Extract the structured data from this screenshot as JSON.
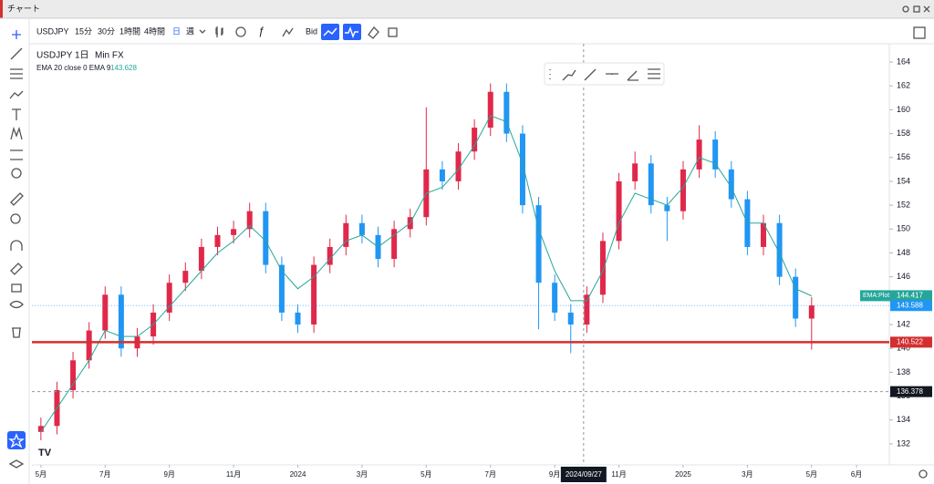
{
  "header": {
    "title": "チャート"
  },
  "toolbar": {
    "symbol": "USDJPY",
    "intervals": [
      "15分",
      "30分",
      "1時間",
      "4時間",
      "日",
      "週"
    ],
    "price_type": "Bid"
  },
  "legend": {
    "symbol": "USDJPY",
    "interval": "1日",
    "source": "Min FX",
    "indicator": "EMA 20 close 0 EMA 9",
    "indicator_value": "143.628"
  },
  "chart_data": {
    "type": "candlestick",
    "up_color": "#e0284a",
    "down_color": "#2196f3",
    "ema_color": "#26a69a",
    "xlim": [
      -0.28,
      26.42
    ],
    "ylim": [
      130.24,
      165.53
    ],
    "yticks": [
      132,
      134,
      136,
      138,
      140,
      142,
      144,
      146,
      148,
      150,
      152,
      154,
      156,
      158,
      160,
      162,
      164
    ],
    "xticks": [
      {
        "value": 0,
        "label": "5月"
      },
      {
        "value": 2,
        "label": "7月"
      },
      {
        "value": 4,
        "label": "9月"
      },
      {
        "value": 6,
        "label": "11月"
      },
      {
        "value": 8,
        "label": "2024"
      },
      {
        "value": 10,
        "label": "3月"
      },
      {
        "value": 12,
        "label": "5月"
      },
      {
        "value": 14,
        "label": "7月"
      },
      {
        "value": 16,
        "label": "9月"
      },
      {
        "value": 18,
        "label": "11月"
      },
      {
        "value": 20,
        "label": "2025"
      },
      {
        "value": 22,
        "label": "3月"
      },
      {
        "value": 24,
        "label": "5月"
      },
      {
        "value": 25.4,
        "label": "6月"
      }
    ],
    "x": [
      0,
      0.5,
      1,
      1.5,
      2,
      2.5,
      3,
      3.5,
      4,
      4.5,
      5,
      5.5,
      6,
      6.5,
      7,
      7.5,
      8,
      8.5,
      9,
      9.5,
      10,
      10.5,
      11,
      11.5,
      12,
      12.5,
      13,
      13.5,
      14,
      14.5,
      15,
      15.5,
      16,
      16.5,
      17,
      17.5,
      18,
      18.5,
      19,
      19.5,
      20,
      20.5,
      21,
      21.5,
      22,
      22.5,
      23,
      23.5,
      24
    ],
    "open": [
      133,
      133.5,
      136.5,
      139,
      141.5,
      144.5,
      140,
      141,
      143,
      145.5,
      146.5,
      148.5,
      149.5,
      150,
      151.5,
      147,
      143,
      142,
      147,
      148.5,
      150.5,
      149.5,
      147.5,
      150,
      151,
      155,
      154,
      156.5,
      158.5,
      161.5,
      158,
      152,
      145.5,
      143,
      142,
      144.5,
      149,
      154,
      155.5,
      152,
      151.5,
      155,
      157.5,
      155,
      152.5,
      148.5,
      150.5,
      146,
      142.5
    ],
    "high": [
      134.2,
      137.2,
      139.7,
      142.2,
      145.2,
      145.2,
      141.7,
      143.7,
      146.2,
      147.2,
      149.2,
      150.2,
      150.7,
      152.2,
      152.2,
      147.7,
      143.7,
      147.7,
      149.2,
      151.2,
      151.2,
      150.2,
      150.7,
      151.7,
      160.2,
      155.7,
      157.2,
      159.2,
      162.2,
      162.2,
      158.7,
      152.7,
      146.2,
      143.7,
      145.2,
      149.7,
      154.7,
      156.5,
      156.2,
      152.7,
      155.7,
      158.7,
      158.2,
      155.7,
      153.2,
      151.2,
      151.2,
      146.7,
      144.3
    ],
    "low": [
      132.3,
      132.8,
      135.8,
      138.3,
      140.8,
      139.3,
      139.3,
      140.3,
      142.3,
      144.8,
      145.8,
      147.8,
      148.8,
      149.3,
      146.3,
      142.3,
      141.3,
      141.3,
      146.3,
      147.8,
      148.8,
      146.8,
      146.8,
      149.3,
      150.3,
      153.3,
      153.3,
      155.8,
      157.8,
      157.3,
      151.3,
      141.6,
      142.3,
      139.6,
      141.3,
      143.8,
      148.3,
      153.3,
      151.3,
      149,
      150.8,
      154.3,
      154.3,
      151.8,
      147.8,
      147.8,
      145.3,
      141.8,
      139.9
    ],
    "close": [
      133.5,
      136.5,
      139,
      141.5,
      144.5,
      140,
      141,
      143,
      145.5,
      146.5,
      148.5,
      149.5,
      150,
      151.5,
      147,
      143,
      142,
      147,
      148.5,
      150.5,
      149.5,
      147.5,
      150,
      151,
      155,
      154,
      156.5,
      158.5,
      161.5,
      158,
      152,
      145.5,
      143,
      142,
      144.5,
      149,
      154,
      155.5,
      152,
      151.5,
      155,
      157.5,
      155,
      152.5,
      148.5,
      150.5,
      146,
      142.5,
      143.6
    ],
    "ema": [
      133,
      135,
      137,
      139,
      141.5,
      141,
      141,
      142,
      143.5,
      145,
      146.5,
      148,
      149,
      150.3,
      149,
      146.5,
      145,
      146,
      147.5,
      149,
      149.5,
      148.5,
      149.5,
      150.5,
      153,
      153.5,
      155,
      157,
      159.5,
      159,
      155.5,
      150,
      146.5,
      144,
      144,
      146.5,
      150.5,
      153,
      152.5,
      152,
      153.5,
      156,
      155.5,
      153.5,
      150.5,
      150.5,
      148,
      145,
      144.4
    ],
    "price_labels": [
      {
        "name": "EMA:Plot",
        "value": 144.417,
        "color": "#26a69a"
      },
      {
        "value": 143.588,
        "color": "#2196f3"
      },
      {
        "value": 140.522,
        "color": "#d32f2f"
      }
    ],
    "support_line": {
      "value": 140.522,
      "color": "#d32f2f"
    },
    "crosshair": {
      "x": 16.9,
      "date": "2024/09/27",
      "price": 136.378
    }
  }
}
